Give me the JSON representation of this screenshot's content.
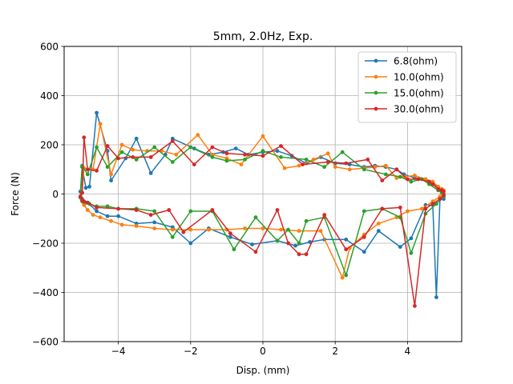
{
  "chart_data": {
    "type": "line",
    "title": "5mm, 2.0Hz, Exp.",
    "xlabel": "Disp. (mm)",
    "ylabel": "Force (N)",
    "xlim": [
      -5.5,
      5.5
    ],
    "ylim": [
      -600,
      600
    ],
    "xticks": [
      -4,
      -2,
      0,
      2,
      4
    ],
    "xtick_labels": [
      "−4",
      "−2",
      "0",
      "2",
      "4"
    ],
    "yticks": [
      -600,
      -400,
      -200,
      0,
      200,
      400,
      600
    ],
    "ytick_labels": [
      "−600",
      "−400",
      "−200",
      "0",
      "200",
      "400",
      "600"
    ],
    "grid": true,
    "legend_position": "upper-right",
    "series": [
      {
        "name": "6.8(ohm)",
        "color": "#1f77b4",
        "x": [
          5.0,
          4.95,
          4.85,
          4.7,
          4.5,
          4.2,
          3.9,
          3.7,
          3.4,
          3.1,
          2.8,
          2.4,
          2.0,
          1.6,
          1.2,
          0.8,
          0.4,
          0.0,
          -0.4,
          -0.75,
          -1.1,
          -1.5,
          -1.9,
          -2.5,
          -2.7,
          -3.1,
          -3.5,
          -3.8,
          -4.2,
          -4.3,
          -4.6,
          -4.8,
          -4.9,
          -5.0,
          -5.05,
          -5.0,
          -4.95,
          -4.85,
          -4.6,
          -4.3,
          -4.0,
          -3.5,
          -3.0,
          -2.5,
          -2.0,
          -1.5,
          -0.9,
          -0.3,
          0.4,
          0.9,
          1.3,
          1.7,
          2.3,
          2.8,
          3.2,
          3.8,
          4.1,
          4.5,
          4.7,
          4.8,
          4.9,
          5.0
        ],
        "y": [
          -10,
          10,
          25,
          45,
          60,
          65,
          80,
          100,
          110,
          115,
          110,
          120,
          125,
          150,
          125,
          155,
          175,
          170,
          160,
          185,
          170,
          160,
          185,
          225,
          160,
          85,
          225,
          145,
          55,
          175,
          330,
          30,
          25,
          110,
          10,
          -20,
          -40,
          -35,
          -70,
          -90,
          -90,
          -120,
          -115,
          -135,
          -200,
          -140,
          -175,
          -205,
          -190,
          -210,
          -195,
          -185,
          -185,
          -235,
          -150,
          -215,
          -180,
          -45,
          -45,
          -420,
          -20,
          -20
        ]
      },
      {
        "name": "10.0(ohm)",
        "color": "#ff7f0e",
        "x": [
          5.0,
          4.95,
          4.85,
          4.7,
          4.5,
          4.2,
          3.9,
          3.7,
          3.4,
          3.1,
          2.8,
          2.4,
          2.0,
          1.8,
          1.4,
          1.0,
          0.6,
          0.0,
          -0.6,
          -1.0,
          -1.4,
          -1.8,
          -2.4,
          -2.8,
          -3.2,
          -3.6,
          -3.9,
          -4.2,
          -4.5,
          -4.7,
          -4.95,
          -5.0,
          -5.05,
          -5.0,
          -4.95,
          -4.85,
          -4.7,
          -4.5,
          -4.2,
          -3.9,
          -3.5,
          -3.0,
          -2.5,
          -2.0,
          -1.5,
          -1.0,
          -0.5,
          0.0,
          0.5,
          1.0,
          1.6,
          2.2,
          2.4,
          2.8,
          3.2,
          3.7,
          4.0,
          4.4,
          4.7,
          4.9,
          5.0
        ],
        "y": [
          15,
          20,
          30,
          50,
          60,
          75,
          70,
          65,
          115,
          110,
          105,
          100,
          110,
          165,
          140,
          115,
          105,
          235,
          120,
          145,
          160,
          240,
          160,
          175,
          175,
          180,
          200,
          80,
          285,
          100,
          105,
          5,
          -10,
          -25,
          -45,
          -65,
          -85,
          -95,
          -110,
          -125,
          -130,
          -140,
          -145,
          -145,
          -145,
          -145,
          -140,
          -140,
          -145,
          -150,
          -150,
          -340,
          -220,
          -165,
          -120,
          -95,
          -70,
          -60,
          -30,
          -10,
          -10
        ]
      },
      {
        "name": "15.0(ohm)",
        "color": "#2ca02c",
        "x": [
          5.0,
          4.95,
          4.85,
          4.6,
          4.4,
          4.1,
          3.8,
          3.4,
          2.8,
          2.2,
          1.7,
          1.2,
          0.5,
          0.0,
          -0.5,
          -1.0,
          -1.4,
          -2.0,
          -2.5,
          -3.0,
          -3.5,
          -3.9,
          -4.3,
          -4.6,
          -4.85,
          -5.0,
          -5.05,
          -5.0,
          -4.9,
          -4.8,
          -4.6,
          -4.3,
          -4.0,
          -3.5,
          -3.0,
          -2.5,
          -2.0,
          -1.4,
          -0.8,
          -0.2,
          0.4,
          0.7,
          1.0,
          1.2,
          1.7,
          2.3,
          2.8,
          3.3,
          3.8,
          4.1,
          4.5,
          4.8,
          5.0
        ],
        "y": [
          0,
          5,
          15,
          40,
          60,
          50,
          70,
          80,
          100,
          170,
          110,
          140,
          150,
          175,
          140,
          135,
          150,
          190,
          130,
          190,
          140,
          170,
          110,
          190,
          80,
          115,
          -15,
          -30,
          -35,
          -40,
          -50,
          -50,
          -60,
          -60,
          -70,
          -175,
          -70,
          -70,
          -225,
          -95,
          -190,
          -145,
          -200,
          -110,
          -95,
          -330,
          -70,
          -60,
          -95,
          -240,
          -80,
          -40,
          -10
        ]
      },
      {
        "name": "30.0(ohm)",
        "color": "#d62728",
        "x": [
          5.0,
          4.95,
          4.85,
          4.7,
          4.6,
          4.3,
          4.0,
          3.7,
          3.3,
          2.9,
          2.3,
          1.8,
          1.1,
          0.5,
          0.0,
          -0.5,
          -1.0,
          -1.4,
          -1.9,
          -2.5,
          -3.1,
          -3.6,
          -4.0,
          -4.3,
          -4.6,
          -4.85,
          -4.95,
          -5.0,
          -5.05,
          -5.0,
          -4.95,
          -4.85,
          -4.6,
          -4.0,
          -3.5,
          -3.1,
          -2.6,
          -2.2,
          -1.4,
          -0.9,
          -0.2,
          0.4,
          0.7,
          1.0,
          1.2,
          1.7,
          2.3,
          2.8,
          3.3,
          3.8,
          4.2,
          4.5,
          4.7,
          4.9,
          5.0
        ],
        "y": [
          10,
          15,
          20,
          40,
          50,
          60,
          60,
          100,
          55,
          140,
          125,
          130,
          120,
          195,
          155,
          160,
          165,
          190,
          120,
          215,
          150,
          150,
          145,
          195,
          95,
          100,
          230,
          5,
          -10,
          -25,
          -30,
          -35,
          -55,
          -60,
          -65,
          -85,
          -65,
          -155,
          -65,
          -160,
          -235,
          -65,
          -200,
          -245,
          -245,
          -85,
          -225,
          -175,
          -60,
          -55,
          -455,
          -60,
          -40,
          -20,
          -5
        ]
      }
    ]
  }
}
